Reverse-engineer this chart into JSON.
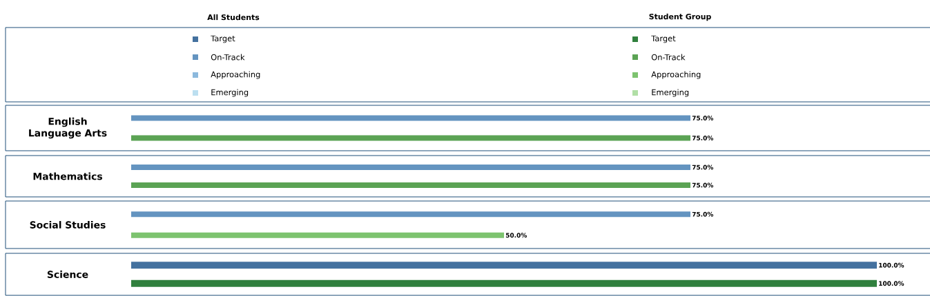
{
  "chart_data": [
    {
      "type": "other",
      "legend": "top",
      "annotations": [
        "All Students",
        "Student Group"
      ],
      "series": [
        {
          "name": "Target",
          "color": "#44719f"
        },
        {
          "name": "Target",
          "color": "#30803e"
        },
        {
          "name": "On-Track",
          "color": "#6494c0"
        },
        {
          "name": "On-Track",
          "color": "#5ba354"
        },
        {
          "name": "Approaching",
          "color": "#8cb9dd"
        },
        {
          "name": "Approaching",
          "color": "#7dc36f"
        },
        {
          "name": "Emerging",
          "color": "#bcdff0"
        },
        {
          "name": "Emerging",
          "color": "#b1dfa6"
        }
      ]
    },
    {
      "type": "bar",
      "orientation": "horizontal",
      "title": "English Language Arts",
      "categories": [
        null,
        null
      ],
      "tick_labels": false,
      "values": [
        75,
        75
      ],
      "colors": [
        "#6494c0",
        "#5ba354"
      ],
      "value_labels": [
        "75.0%",
        "75.0%"
      ]
    },
    {
      "type": "bar",
      "orientation": "horizontal",
      "title": "Mathematics",
      "categories": [
        null,
        null
      ],
      "tick_labels": false,
      "values": [
        75,
        75
      ],
      "colors": [
        "#6494c0",
        "#5ba354"
      ],
      "value_labels": [
        "75.0%",
        "75.0%"
      ]
    },
    {
      "type": "bar",
      "orientation": "horizontal",
      "title": "Social Studies",
      "categories": [
        null,
        null
      ],
      "tick_labels": false,
      "values": [
        75,
        50
      ],
      "colors": [
        "#6494c0",
        "#7dc36f"
      ],
      "value_labels": [
        "75.0%",
        "50.0%"
      ]
    },
    {
      "type": "bar",
      "orientation": "horizontal",
      "title": "Science",
      "categories": [
        null,
        null
      ],
      "tick_labels": false,
      "values": [
        100,
        100
      ],
      "colors": [
        "#44719f",
        "#30803e"
      ],
      "value_labels": [
        "100.0%",
        "100.0%"
      ]
    }
  ]
}
